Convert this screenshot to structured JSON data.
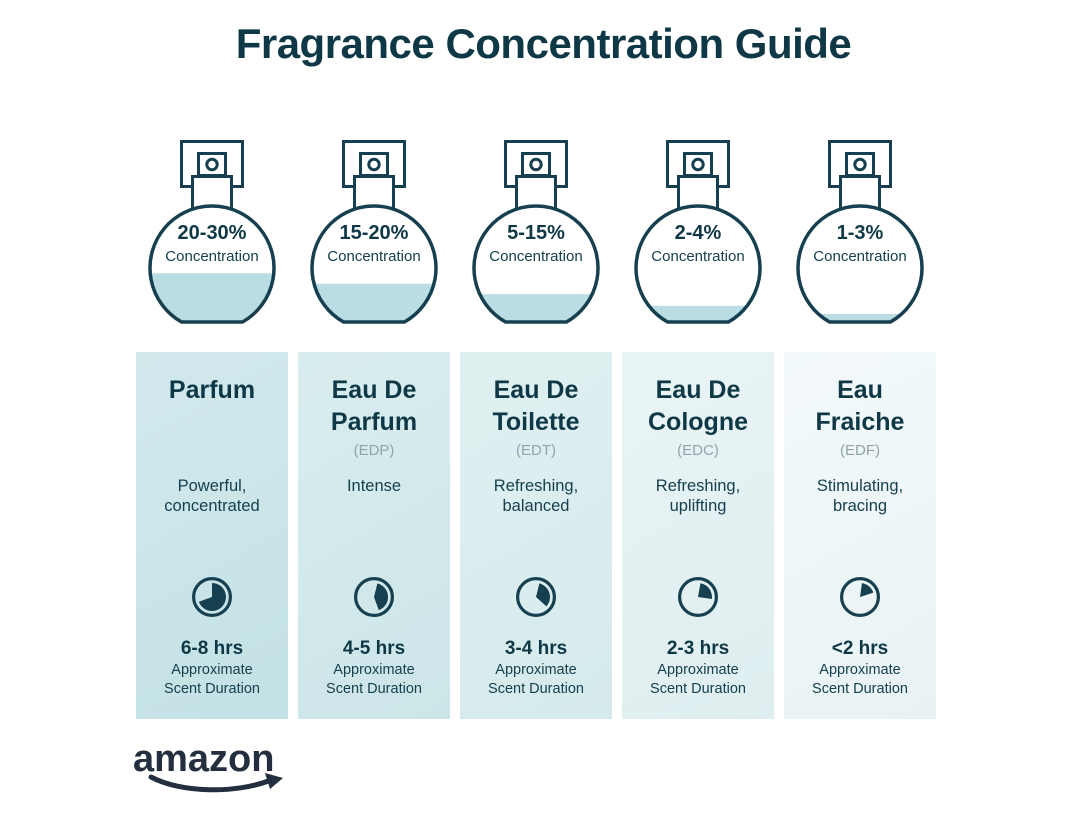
{
  "title": "Fragrance Concentration Guide",
  "brand": {
    "logo_text": "amazon"
  },
  "labels": {
    "concentration": "Concentration",
    "duration_caption": "Approximate Scent Duration"
  },
  "colors": {
    "title_text": "#0f3847",
    "dark_teal": "#16404f",
    "body_text": "#16404e",
    "abbr_gray": "#92a4a8",
    "liquid": "#b9dde2",
    "logo": "#232f3e",
    "background": "#ffffff"
  },
  "columns": [
    {
      "concentration": "20-30%",
      "fill_percent": 42,
      "name": "Parfum",
      "abbr": "",
      "description": "Powerful,\nconcentrated",
      "clock": {
        "start_deg": 0,
        "end_deg": 250
      },
      "duration": "6-8 hrs",
      "bg": [
        "#d2e9ec",
        "#c3e1e5"
      ]
    },
    {
      "concentration": "15-20%",
      "fill_percent": 33,
      "name": "Eau De\nParfum",
      "abbr": "(EDP)",
      "description": "Intense",
      "clock": {
        "start_deg": 14,
        "end_deg": 160
      },
      "duration": "4-5 hrs",
      "bg": [
        "#d9edef",
        "#cce5e8"
      ]
    },
    {
      "concentration": "5-15%",
      "fill_percent": 24,
      "name": "Eau De\nToilette",
      "abbr": "(EDT)",
      "description": "Refreshing,\nbalanced",
      "clock": {
        "start_deg": 14,
        "end_deg": 132
      },
      "duration": "3-4 hrs",
      "bg": [
        "#e0f0f1",
        "#d5eaec"
      ]
    },
    {
      "concentration": "2-4%",
      "fill_percent": 14,
      "name": "Eau De\nCologne",
      "abbr": "(EDC)",
      "description": "Refreshing,\nuplifting",
      "clock": {
        "start_deg": 10,
        "end_deg": 98
      },
      "duration": "2-3 hrs",
      "bg": [
        "#e9f4f5",
        "#dfeef0"
      ]
    },
    {
      "concentration": "1-3%",
      "fill_percent": 7,
      "name": "Eau\nFraiche",
      "abbr": "(EDF)",
      "description": "Stimulating,\nbracing",
      "clock": {
        "start_deg": 8,
        "end_deg": 72
      },
      "duration": "<2 hrs",
      "bg": [
        "#f3f9fa",
        "#e8f2f4"
      ]
    }
  ]
}
